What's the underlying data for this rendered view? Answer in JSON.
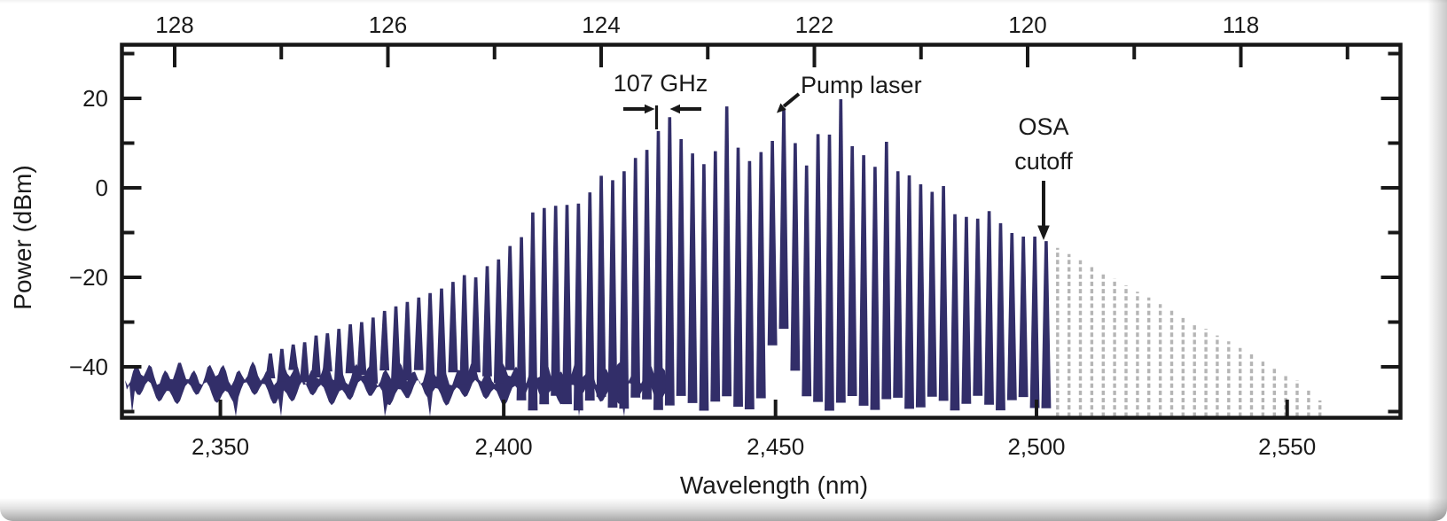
{
  "chart_data": {
    "type": "line",
    "title": "",
    "xlabel": "Wavelength  (nm)",
    "ylabel": "Power (dBm)",
    "axes": {
      "bottom_tick_values_nm": [
        2350,
        2400,
        2450,
        2500,
        2550
      ],
      "bottom_tick_labels": [
        "2,350",
        "2,400",
        "2,450",
        "2,500",
        "2,550"
      ],
      "top_tick_values_thz": [
        128,
        126,
        124,
        122,
        120,
        118
      ],
      "top_tick_labels": [
        "128",
        "126",
        "124",
        "122",
        "120",
        "118"
      ],
      "top_minor_tick_values_thz": [
        127,
        125,
        123,
        121,
        119,
        117
      ],
      "y_tick_values_dbm": [
        20,
        0,
        -20,
        -40
      ],
      "y_tick_labels": [
        "20",
        "0",
        "−20",
        "−40"
      ],
      "y_minor_tick_values_dbm": [
        30,
        10,
        -10,
        -30,
        -50
      ],
      "ylim_dbm": [
        -51.7,
        32
      ],
      "xlim_thz": [
        128.5,
        116.5
      ],
      "grid": "off",
      "axis_scale": "linear-in-frequency"
    },
    "comb": {
      "spacing_ghz": 107,
      "pump_freq_thz": 122.287,
      "pump_wavelength_nm": 2452,
      "pump_power_dbm": 17.8,
      "osa_cutoff_nm": 2500,
      "noise_floor_dbm": -43.5,
      "solid_teeth": {
        "start_freq_thz": 127.102,
        "step_thz": -0.107,
        "power_dbm": [
          -37,
          -36,
          -35,
          -34.5,
          -33,
          -32.5,
          -31.5,
          -30.5,
          -30,
          -29,
          -27.5,
          -26.5,
          -25.5,
          -24.5,
          -23.5,
          -22.5,
          -21,
          -19.5,
          -20,
          -17.5,
          -16,
          -13,
          -11,
          -5.5,
          -4.5,
          -4,
          -3.8,
          -3.5,
          -1,
          2.7,
          1.7,
          3.7,
          6.7,
          8.5,
          12.7,
          15.8,
          10.9,
          7.7,
          5.3,
          8.2,
          18.2,
          9,
          6,
          8,
          10.5,
          17.8,
          10,
          5,
          12,
          11.9,
          19.8,
          9.3,
          7.3,
          4.7,
          10.3,
          3.7,
          2.8,
          0.8,
          -0.9,
          0.4,
          -5.9,
          -6.5,
          -6.9,
          -5.2,
          -7.9,
          -10.1,
          -10.9,
          -10.9,
          -11.9
        ]
      },
      "extrapolated_teeth": {
        "start_freq_thz": 119.719,
        "step_thz": -0.107,
        "power_dbm": [
          -13.4,
          -14.8,
          -16.2,
          -17.5,
          -19,
          -20.3,
          -21.8,
          -23.2,
          -24.5,
          -26,
          -27.3,
          -28.8,
          -30.2,
          -31.5,
          -33,
          -34.3,
          -35.8,
          -37.2,
          -38.5,
          -40,
          -41.5,
          -43,
          -45,
          -47.5
        ]
      }
    },
    "annotations": {
      "comb_spacing_label": "107 GHz",
      "pump_label": "Pump laser",
      "cutoff_label_line1": "OSA",
      "cutoff_label_line2": "cutoff"
    },
    "colors": {
      "comb": "#322e69",
      "extrapolated": "#b5b5b5",
      "axis": "#181818"
    }
  }
}
